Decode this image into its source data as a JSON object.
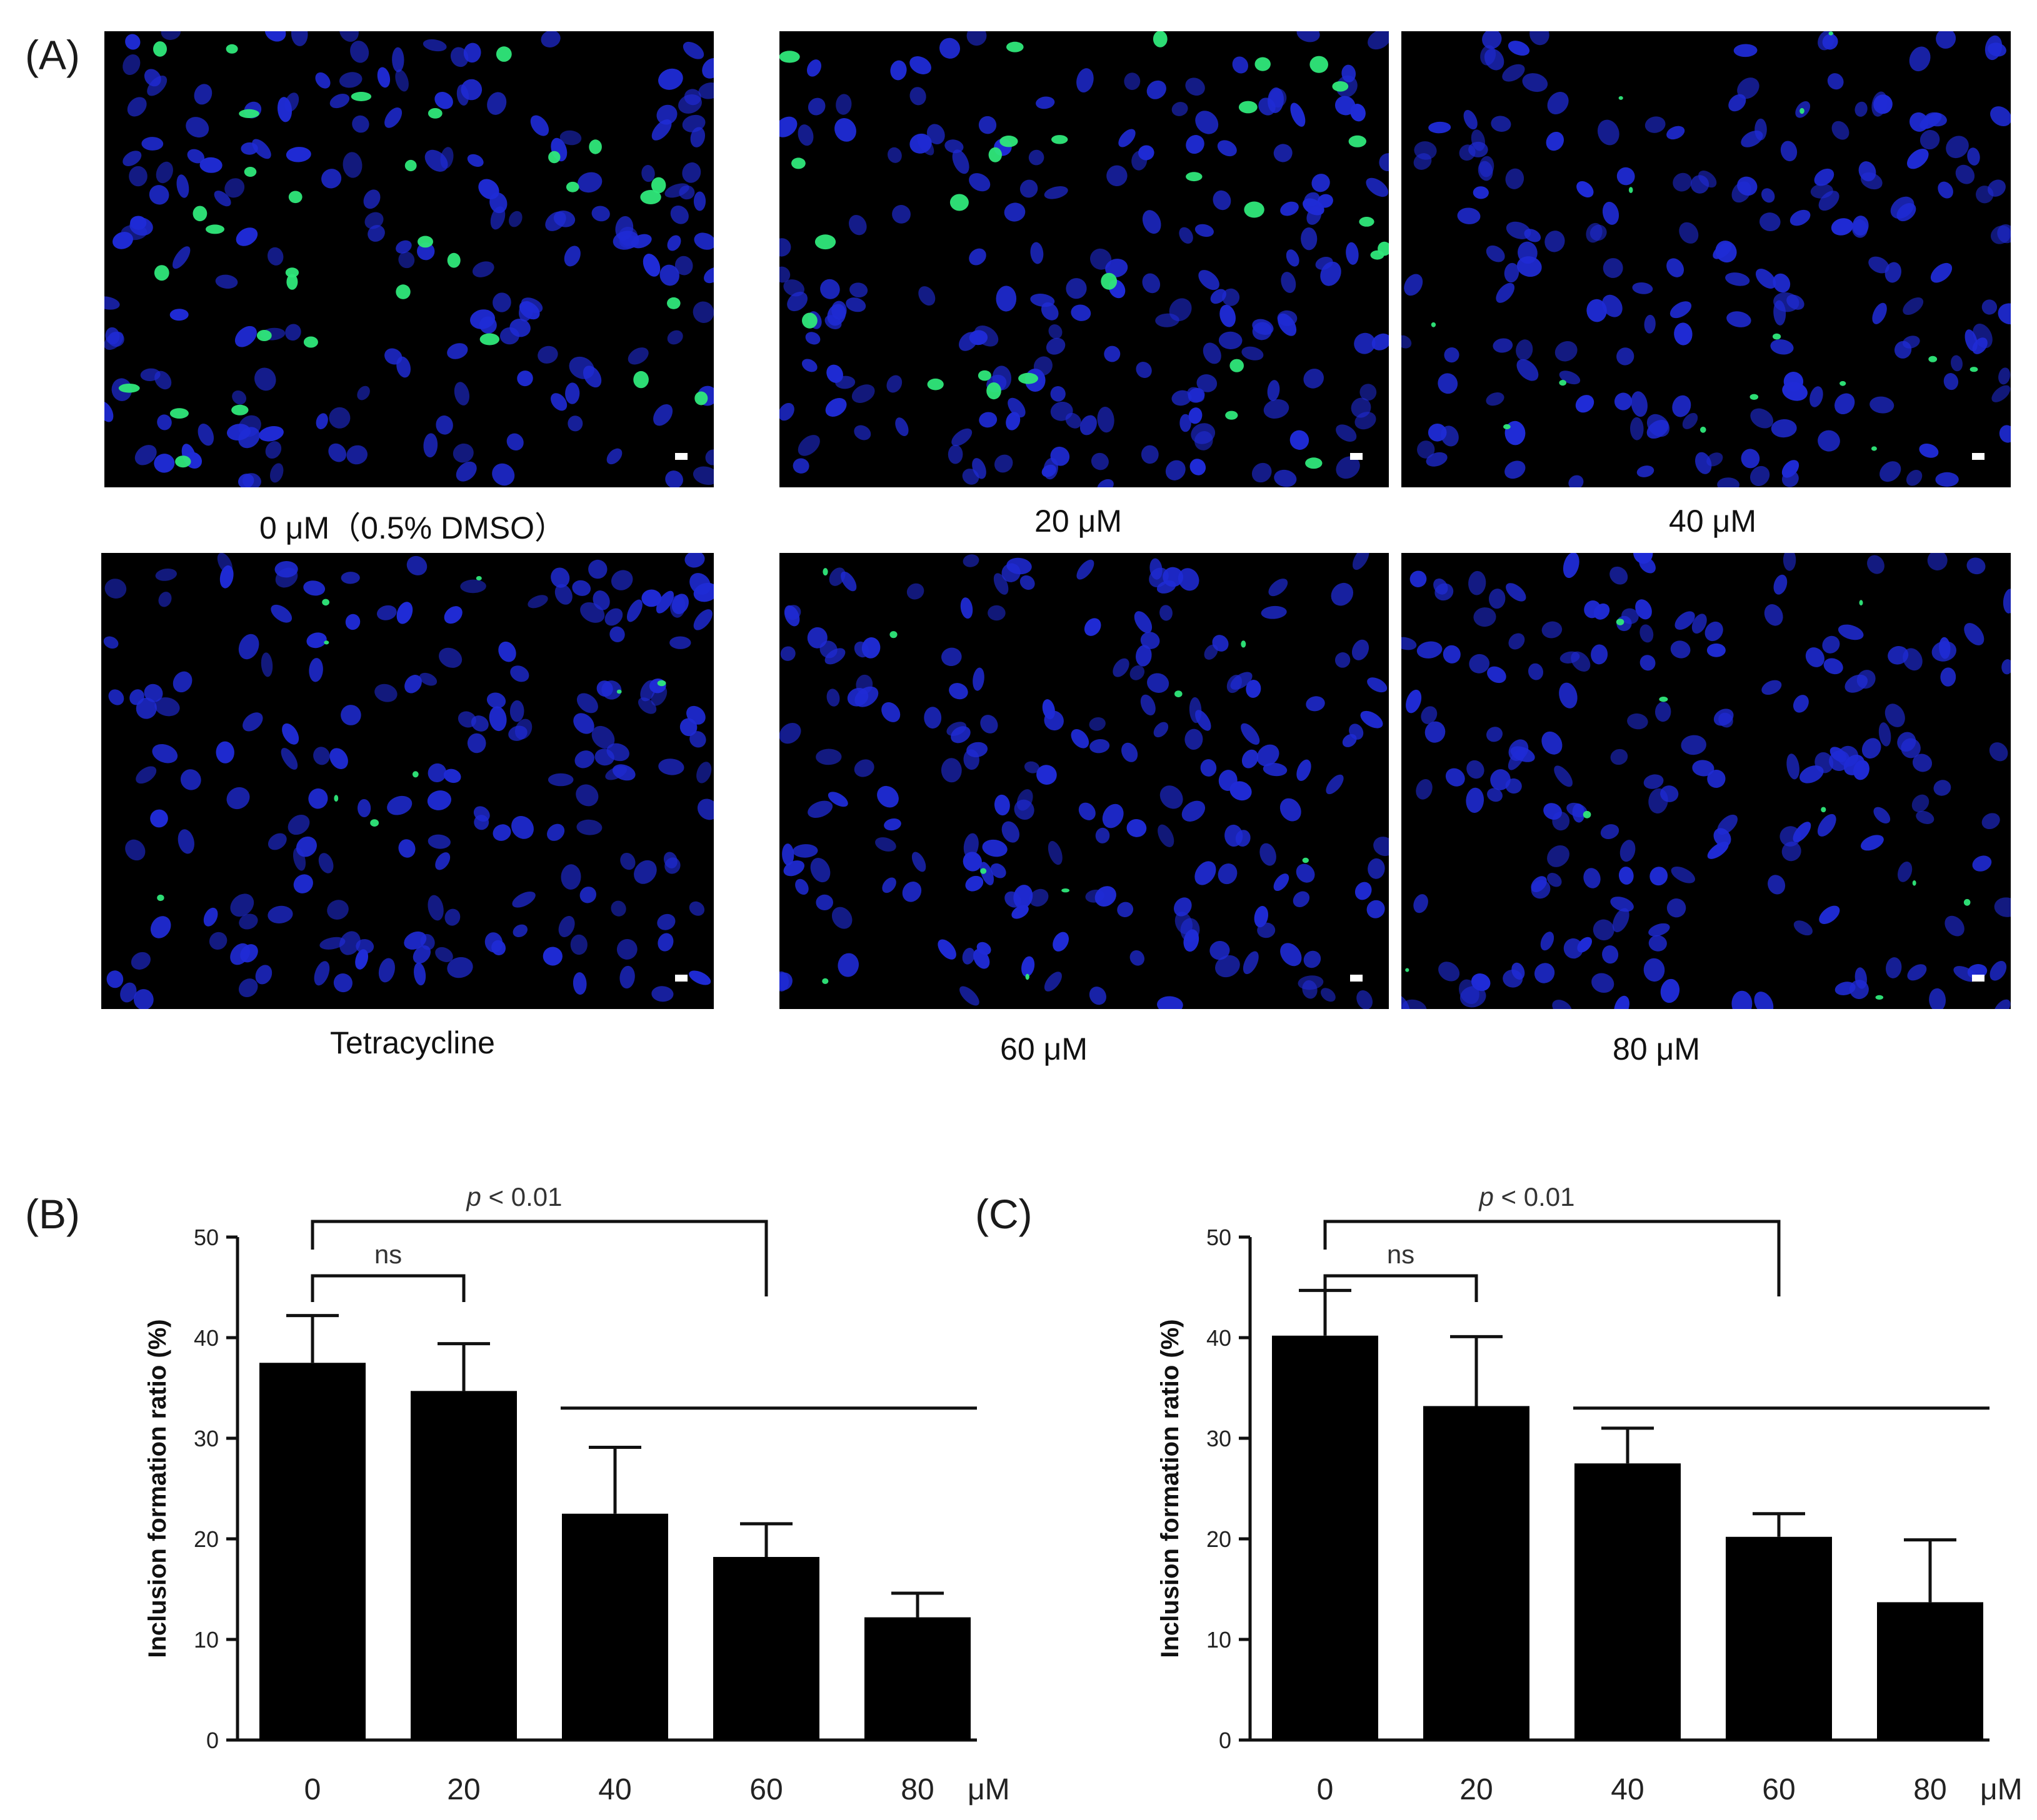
{
  "panels": {
    "a": {
      "letter": "(A)"
    },
    "b": {
      "letter": "(B)"
    },
    "c": {
      "letter": "(C)"
    }
  },
  "micrographs": [
    {
      "label": "0 μM（0.5% DMSO）",
      "green_level": "high"
    },
    {
      "label": "20 μM",
      "green_level": "medium"
    },
    {
      "label": "40 μM",
      "green_level": "low"
    },
    {
      "label": "Tetracycline",
      "green_level": "trace"
    },
    {
      "label": "60 μM",
      "green_level": "trace"
    },
    {
      "label": "80 μM",
      "green_level": "trace"
    }
  ],
  "colors": {
    "nuclei": "#1f2bd6",
    "inclusions": "#2fe87a",
    "bars": "#000000",
    "background": "#000000"
  },
  "chart_data": [
    {
      "type": "bar",
      "panel": "(B)",
      "categories": [
        "0",
        "20",
        "40",
        "60",
        "80"
      ],
      "x_unit": "μM",
      "values": [
        37.5,
        34.7,
        22.5,
        18.2,
        12.2
      ],
      "errors": [
        4.7,
        4.7,
        6.6,
        3.3,
        2.4
      ],
      "ylabel": "Inclusion formation ratio (%)",
      "ylim": [
        0,
        50
      ],
      "yticks": [
        0,
        10,
        20,
        30,
        40,
        50
      ],
      "significance": [
        {
          "from": 0,
          "to": 1,
          "label": "ns"
        },
        {
          "from": 0,
          "to": 3,
          "label_italic": "p",
          "label_rest": " < 0.01"
        }
      ],
      "group_line": {
        "from": 2,
        "to": 4
      }
    },
    {
      "type": "bar",
      "panel": "(C)",
      "categories": [
        "0",
        "20",
        "40",
        "60",
        "80"
      ],
      "x_unit": "μM",
      "values": [
        40.2,
        33.2,
        27.5,
        20.2,
        13.7
      ],
      "errors": [
        4.5,
        6.9,
        3.5,
        2.3,
        6.2
      ],
      "ylabel": "Inclusion formation ratio (%)",
      "ylim": [
        0,
        50
      ],
      "yticks": [
        0,
        10,
        20,
        30,
        40,
        50
      ],
      "significance": [
        {
          "from": 0,
          "to": 1,
          "label": "ns"
        },
        {
          "from": 0,
          "to": 3,
          "label_italic": "p",
          "label_rest": " < 0.01"
        }
      ],
      "group_line": {
        "from": 2,
        "to": 4
      }
    }
  ]
}
